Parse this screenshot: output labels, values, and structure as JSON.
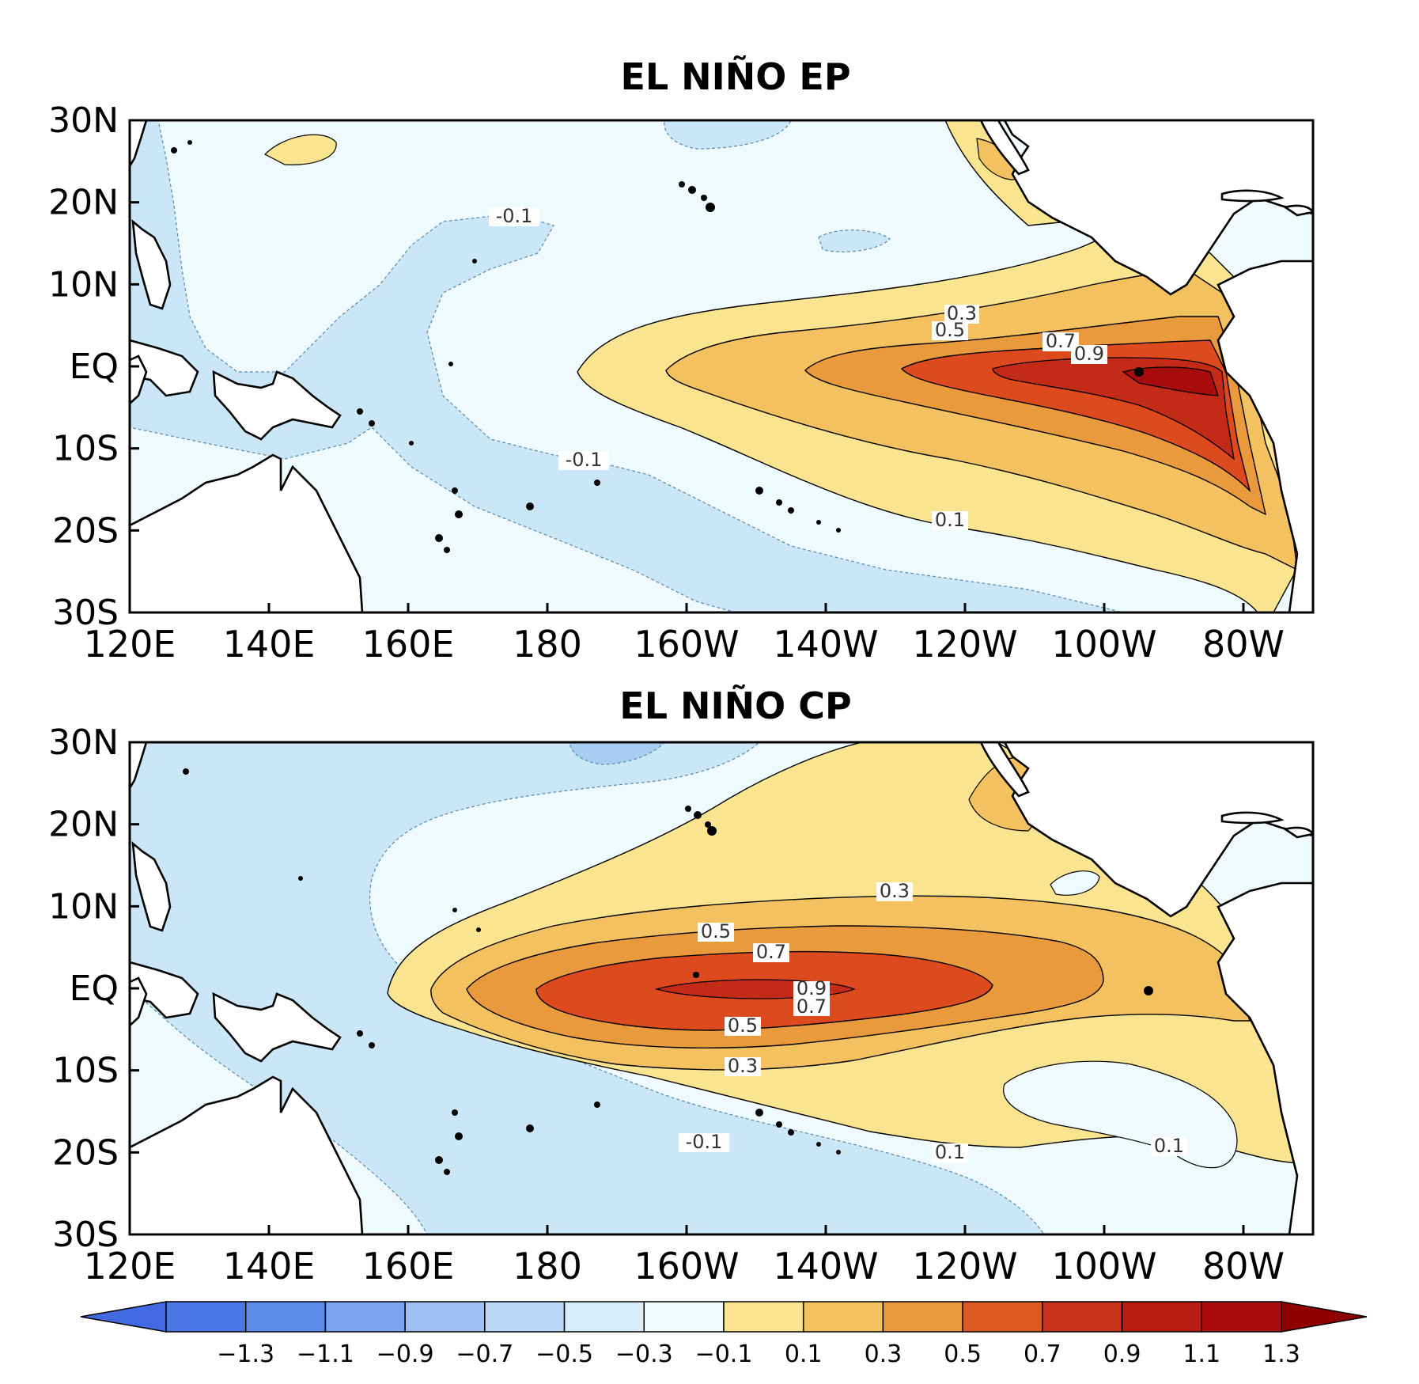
{
  "panels": [
    {
      "key": "ep",
      "title": "EL NIÑO EP",
      "contour_labels": [
        "0.3",
        "0.5",
        "0.7",
        "0.9",
        "-0.1",
        "-0.1",
        "0.1"
      ]
    },
    {
      "key": "cp",
      "title": "EL NIÑO CP",
      "contour_labels": [
        "0.3",
        "0.5",
        "0.7",
        "0.9",
        "0.7",
        "0.5",
        "0.3",
        "-0.1",
        "0.1",
        "0.1"
      ]
    }
  ],
  "x_tick_labels": [
    "120E",
    "140E",
    "160E",
    "180",
    "160W",
    "140W",
    "120W",
    "100W",
    "80W"
  ],
  "y_tick_labels": [
    "30N",
    "20N",
    "10N",
    "EQ",
    "10S",
    "20S",
    "30S"
  ],
  "colorbar": {
    "labels": [
      "−1.3",
      "−1.1",
      "−0.9",
      "−0.7",
      "−0.5",
      "−0.3",
      "−0.1",
      "0.1",
      "0.3",
      "0.5",
      "0.7",
      "0.9",
      "1.1",
      "1.3"
    ],
    "colors": [
      "#4169e1",
      "#4a78e4",
      "#5a8aea",
      "#7aa4ef",
      "#9ebff4",
      "#bcd8f6",
      "#d6eef9",
      "#eefafe",
      "#fae490",
      "#f3c160",
      "#e99a3c",
      "#dd5a25",
      "#c83219",
      "#b81c12",
      "#a80c0c",
      "#900000"
    ]
  },
  "colors": {
    "land": "#ffffff",
    "neg1": "#cbe7f7",
    "neg3": "#a8cdf3",
    "pos1": "#fae490",
    "pos3": "#f3c160",
    "pos5": "#e99a3c",
    "pos7": "#dd4a1e",
    "pos9": "#c42a18"
  }
}
